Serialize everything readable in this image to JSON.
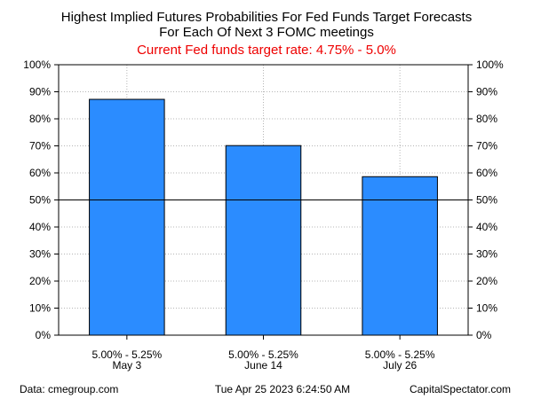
{
  "chart_data": {
    "type": "bar",
    "title_lines": [
      "Highest Implied Futures Probabilities For Fed Funds Target Forecasts",
      "For Each Of Next 3 FOMC meetings"
    ],
    "subtitle": "Current Fed funds target rate: 4.75% - 5.0%",
    "subtitle_color": "#ee0000",
    "categories": [
      {
        "rate": "5.00% - 5.25%",
        "date": "May 3"
      },
      {
        "rate": "5.00% - 5.25%",
        "date": "June 14"
      },
      {
        "rate": "5.00% - 5.25%",
        "date": "July 26"
      }
    ],
    "values": [
      87.2,
      70.1,
      58.6
    ],
    "ylim": [
      0,
      100
    ],
    "yticks": [
      0,
      10,
      20,
      30,
      40,
      50,
      60,
      70,
      80,
      90,
      100
    ],
    "ytick_suffix": "%",
    "reference_line": 50,
    "bar_color": "#2b8cff",
    "grid": true,
    "axes_both_sides": true
  },
  "footer": {
    "source": "Data: cmegroup.com",
    "timestamp": "Tue Apr 25 2023 6:24:50 AM",
    "credit": "CapitalSpectator.com"
  }
}
